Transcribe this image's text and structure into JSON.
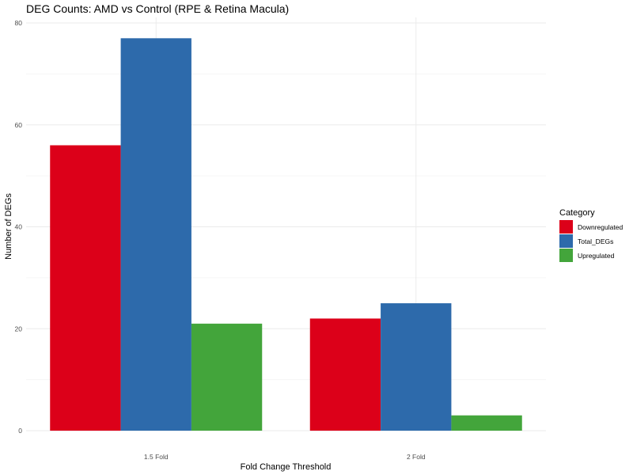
{
  "chart_data": {
    "type": "bar",
    "title": "DEG Counts: AMD vs Control (RPE & Retina Macula)",
    "xlabel": "Fold Change Threshold",
    "ylabel": "Number of DEGs",
    "categories": [
      "1.5 Fold",
      "2 Fold"
    ],
    "series": [
      {
        "name": "Downregulated",
        "values": [
          56,
          22
        ],
        "color": "#dc0019"
      },
      {
        "name": "Total_DEGs",
        "values": [
          77,
          25
        ],
        "color": "#2d6aab"
      },
      {
        "name": "Upregulated",
        "values": [
          21,
          3
        ],
        "color": "#43a53b"
      }
    ],
    "ylim": [
      0,
      80
    ],
    "yticks": [
      0,
      20,
      40,
      60,
      80
    ],
    "grid": true,
    "legend": {
      "title": "Category",
      "position": "right"
    }
  }
}
